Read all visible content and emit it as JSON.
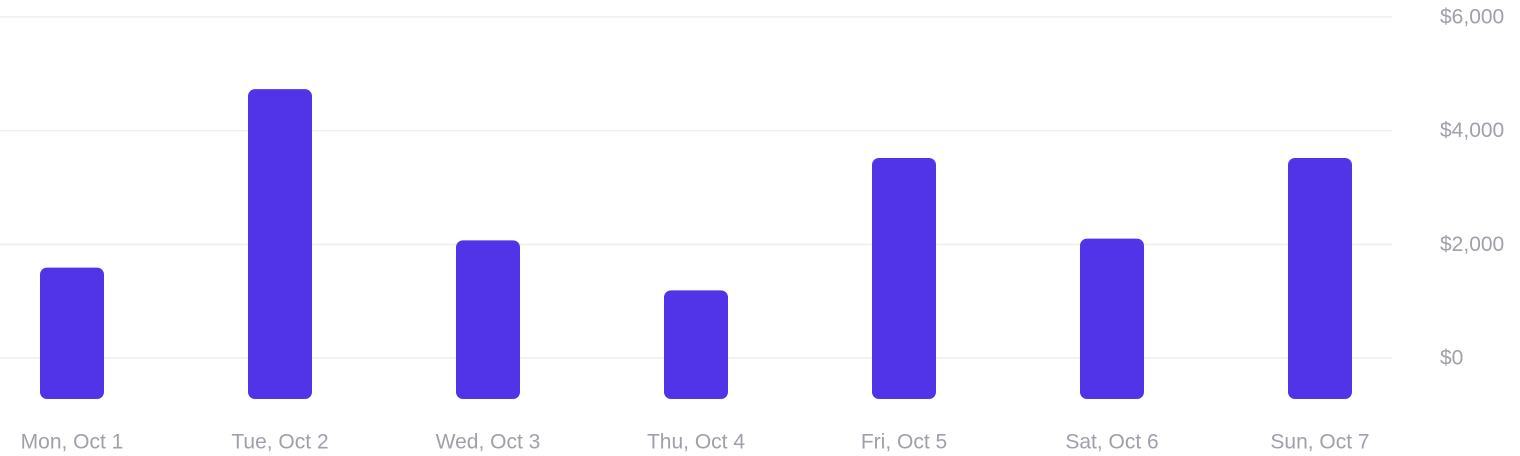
{
  "chart_data": {
    "type": "bar",
    "title": "",
    "xlabel": "",
    "ylabel": "",
    "categories": [
      "Mon, Oct 1",
      "Tue, Oct 2",
      "Wed, Oct 3",
      "Thu, Oct 4",
      "Fri, Oct 5",
      "Sat, Oct 6",
      "Sun, Oct 7"
    ],
    "values": [
      1590,
      4730,
      2070,
      1190,
      3520,
      2100,
      3520
    ],
    "ylim": [
      0,
      6000
    ],
    "yticks": [
      0,
      2000,
      4000,
      6000
    ],
    "ytick_labels": [
      "$0",
      "$2,000",
      "$4,000",
      "$6,000"
    ],
    "y_axis_position": "right",
    "grid": true,
    "legend": "none",
    "bar_color": "#5234e8",
    "grid_color": "#eeeef0",
    "label_color": "#a0a0aa"
  }
}
